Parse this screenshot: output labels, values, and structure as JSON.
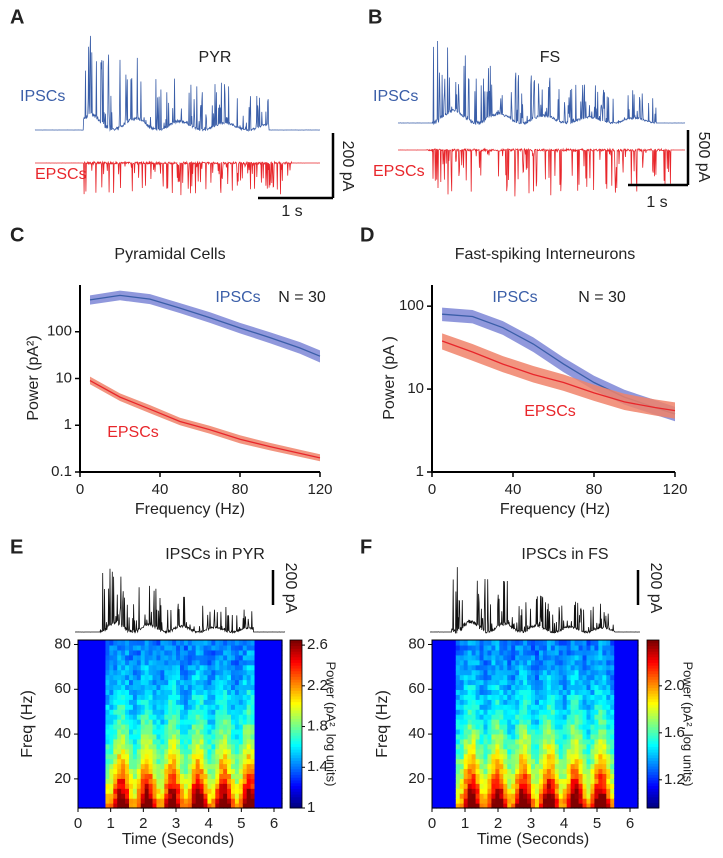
{
  "panel_labels": [
    "A",
    "B",
    "C",
    "D",
    "E",
    "F"
  ],
  "chart_data": [
    {
      "type": "trace",
      "title": "PYR",
      "series": [
        {
          "name": "IPSCs",
          "color": "#3a5ea8"
        },
        {
          "name": "EPSCs",
          "color": "#e8262b"
        }
      ],
      "scale_y_label": "200 pA",
      "scale_x_label": "1 s"
    },
    {
      "type": "trace",
      "title": "FS",
      "series": [
        {
          "name": "IPSCs",
          "color": "#3a5ea8"
        },
        {
          "name": "EPSCs",
          "color": "#e8262b"
        }
      ],
      "scale_y_label": "500 pA",
      "scale_x_label": "1 s"
    },
    {
      "type": "line",
      "title": "Pyramidal Cells",
      "x_label": "Frequency (Hz)",
      "y_label": "Power (pA²)",
      "log_y": true,
      "annotation": "N = 30",
      "x": [
        5,
        20,
        35,
        50,
        65,
        80,
        95,
        110,
        120
      ],
      "xlim": [
        0,
        120
      ],
      "xticks": [
        0,
        40,
        80,
        120
      ],
      "ylim": [
        0.1,
        1000
      ],
      "yticks": [
        0.1,
        1,
        10,
        100
      ],
      "series": [
        {
          "name": "IPSCs",
          "color": "#3a5ea8",
          "band_color": "#7d86d6",
          "values": [
            480,
            600,
            500,
            320,
            200,
            120,
            75,
            45,
            30
          ],
          "lower": [
            380,
            470,
            390,
            250,
            155,
            92,
            57,
            34,
            22
          ],
          "upper": [
            600,
            760,
            640,
            410,
            260,
            155,
            98,
            60,
            40
          ]
        },
        {
          "name": "EPSCs",
          "color": "#e8262b",
          "band_color": "#f0826a",
          "values": [
            9,
            4,
            2.2,
            1.2,
            0.8,
            0.5,
            0.35,
            0.25,
            0.2
          ],
          "lower": [
            7.5,
            3.3,
            1.8,
            1,
            0.66,
            0.41,
            0.29,
            0.21,
            0.17
          ],
          "upper": [
            11,
            4.8,
            2.7,
            1.45,
            0.97,
            0.61,
            0.42,
            0.3,
            0.24
          ]
        }
      ]
    },
    {
      "type": "line",
      "title": "Fast-spiking Interneurons",
      "x_label": "Frequency (Hz)",
      "y_label": "Power (pA  )",
      "log_y": true,
      "annotation": "N = 30",
      "x": [
        5,
        20,
        35,
        50,
        65,
        80,
        95,
        110,
        120
      ],
      "xlim": [
        0,
        120
      ],
      "xticks": [
        0,
        40,
        80,
        120
      ],
      "ylim": [
        1,
        180
      ],
      "yticks": [
        1,
        10,
        100
      ],
      "series": [
        {
          "name": "IPSCs",
          "color": "#3a5ea8",
          "band_color": "#7d86d6",
          "values": [
            80,
            75,
            55,
            35,
            20,
            12,
            8,
            6,
            5
          ],
          "lower": [
            66,
            62,
            45,
            28,
            16,
            9.7,
            6.5,
            4.9,
            4.1
          ],
          "upper": [
            96,
            90,
            66,
            42,
            24,
            14.5,
            9.8,
            7.4,
            6.1
          ]
        },
        {
          "name": "EPSCs",
          "color": "#e8262b",
          "band_color": "#f0826a",
          "values": [
            38,
            28,
            20,
            15,
            12,
            9,
            7,
            6,
            5.5
          ],
          "lower": [
            30,
            22,
            16,
            12,
            9.5,
            7.2,
            5.6,
            4.8,
            4.4
          ],
          "upper": [
            47,
            35,
            25,
            19,
            15,
            11.3,
            8.8,
            7.5,
            6.9
          ]
        }
      ]
    },
    {
      "type": "spectrogram",
      "title": "IPSCs in PYR",
      "scale_y_label": "200 pA",
      "x_label": "Time (Seconds)",
      "y_label": "Freq (Hz)",
      "xlim": [
        0,
        6
      ],
      "xticks": [
        0,
        1,
        2,
        3,
        4,
        5,
        6
      ],
      "ylim": [
        7,
        82
      ],
      "yticks": [
        20,
        40,
        60,
        80
      ],
      "colorbar": {
        "label": "Power (pA², log units)",
        "lim": [
          1,
          2.65
        ],
        "ticks": [
          1,
          1.4,
          1.8,
          2.2,
          2.6
        ]
      }
    },
    {
      "type": "spectrogram",
      "title": "IPSCs in FS",
      "scale_y_label": "200 pA",
      "x_label": "Time (Seconds)",
      "y_label": "Freq (Hz)",
      "xlim": [
        0,
        6
      ],
      "xticks": [
        0,
        1,
        2,
        3,
        4,
        5,
        6
      ],
      "ylim": [
        7,
        82
      ],
      "yticks": [
        20,
        40,
        60,
        80
      ],
      "colorbar": {
        "label": "Power (pA², log units)",
        "lim": [
          0.96,
          2.39
        ],
        "ticks": [
          1.2,
          1.6,
          {
            "value": 2,
            "label": "2.0"
          }
        ]
      }
    }
  ]
}
